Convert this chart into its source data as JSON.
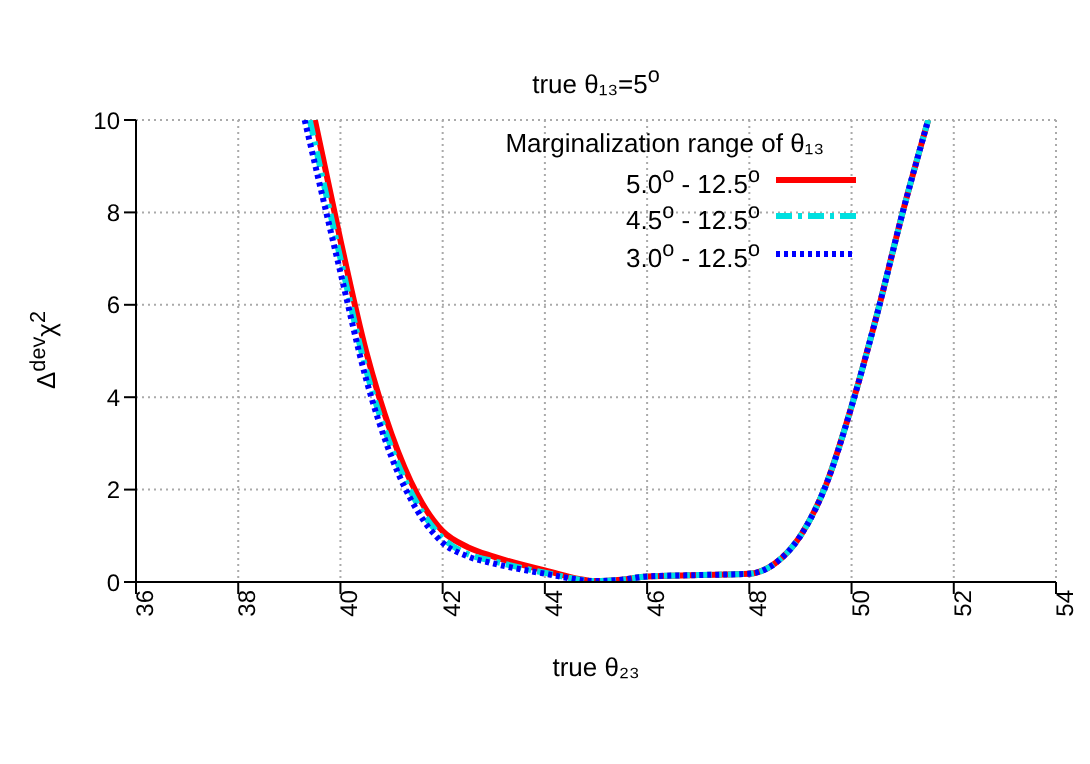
{
  "chart_data": {
    "type": "line",
    "title": "true θ₁₃=5$^{o}$",
    "xlabel": "true θ₂₃",
    "ylabel": "Δ$^{dev}$χ$^{2}$",
    "legend_title": "Marginalization range of θ₁₃",
    "legend": "top right",
    "grid": true,
    "marker": "none",
    "xlim": [
      36,
      54
    ],
    "xticks": [
      36,
      38,
      40,
      42,
      44,
      46,
      48,
      50,
      52,
      54
    ],
    "ylim": [
      0,
      10
    ],
    "yticks": [
      0,
      2,
      4,
      6,
      8,
      10
    ],
    "series": [
      {
        "name": "5.0$^{o}$ - 12.5$^{o}$",
        "color": "#ff0000",
        "line_style": "solid",
        "x": [
          39.5,
          40,
          40.5,
          41,
          41.5,
          42,
          42.5,
          43,
          44,
          45,
          45.5,
          46,
          47,
          48,
          48.5,
          49,
          49.5,
          50,
          50.5,
          51,
          51.5
        ],
        "values": [
          10,
          7.4,
          5.0,
          3.2,
          1.9,
          1.1,
          0.75,
          0.55,
          0.25,
          0.02,
          0.05,
          0.12,
          0.15,
          0.18,
          0.4,
          1.0,
          2.1,
          3.8,
          5.8,
          8.0,
          10
        ]
      },
      {
        "name": "4.5$^{o}$ - 12.5$^{o}$",
        "color": "#00e0e0",
        "line_style": "dashdot",
        "x": [
          39.4,
          40,
          40.5,
          41,
          41.5,
          42,
          42.5,
          43,
          44,
          45,
          45.5,
          46,
          47,
          48,
          48.5,
          49,
          49.5,
          50,
          50.5,
          51,
          51.5
        ],
        "values": [
          10,
          7.0,
          4.6,
          2.9,
          1.7,
          0.95,
          0.6,
          0.45,
          0.2,
          0.02,
          0.05,
          0.12,
          0.15,
          0.18,
          0.4,
          1.0,
          2.1,
          3.8,
          5.8,
          8.0,
          10
        ]
      },
      {
        "name": "3.0$^{o}$ - 12.5$^{o}$",
        "color": "#0000ff",
        "line_style": "dotted",
        "x": [
          39.3,
          40,
          40.5,
          41,
          41.5,
          42,
          42.5,
          43,
          44,
          45,
          45.5,
          46,
          47,
          48,
          48.5,
          49,
          49.5,
          50,
          50.5,
          51,
          51.5
        ],
        "values": [
          10,
          6.7,
          4.4,
          2.7,
          1.55,
          0.85,
          0.55,
          0.4,
          0.18,
          0.02,
          0.05,
          0.12,
          0.15,
          0.18,
          0.4,
          1.0,
          2.1,
          3.8,
          5.8,
          8.0,
          10
        ]
      }
    ]
  }
}
